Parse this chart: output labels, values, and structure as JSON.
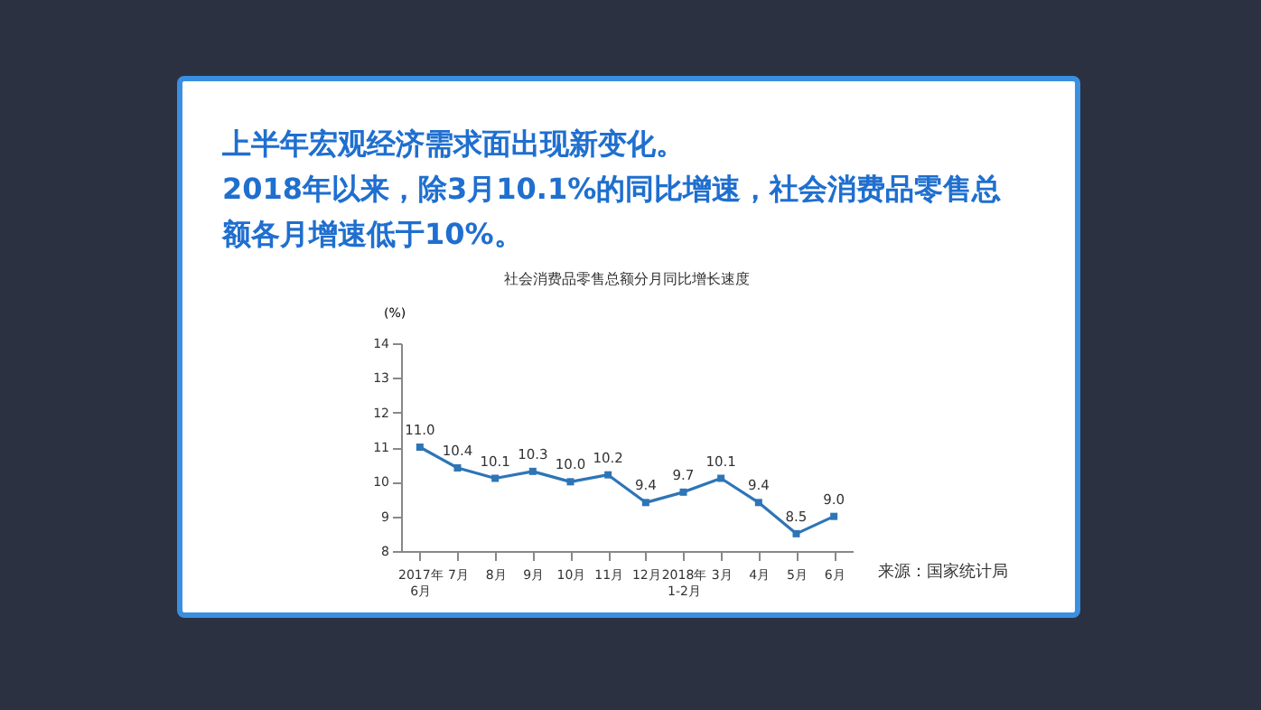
{
  "chart_data": {
    "type": "line",
    "title": "社会消费品零售总额分月同比增长速度",
    "annotations": [
      "上半年宏观经济需求面出现新变化。",
      "2018年以来，除3月10.1%的同比增速，社会消费品零售总额各月增速低于10%。",
      "来源：国家统计局"
    ],
    "ylabel": "(%)",
    "categories": [
      "2017年\n6月",
      "7月",
      "8月",
      "9月",
      "10月",
      "11月",
      "12月",
      "2018年\n1-2月",
      "3月",
      "4月",
      "5月",
      "6月"
    ],
    "series": [
      {
        "color": "#2e75b6",
        "values": [
          11.0,
          10.4,
          10.1,
          10.3,
          10.0,
          10.2,
          9.4,
          9.7,
          10.1,
          9.4,
          8.5,
          9.0
        ],
        "value_labels": [
          "11.0",
          "10.4",
          "10.1",
          "10.3",
          "10.0",
          "10.2",
          "9.4",
          "9.7",
          "10.1",
          "9.4",
          "8.5",
          "9.0"
        ]
      }
    ],
    "ylim": [
      8,
      14
    ],
    "yticks": [
      8,
      9,
      10,
      11,
      12,
      13,
      14
    ],
    "marker": "square",
    "line_style": "solid"
  }
}
